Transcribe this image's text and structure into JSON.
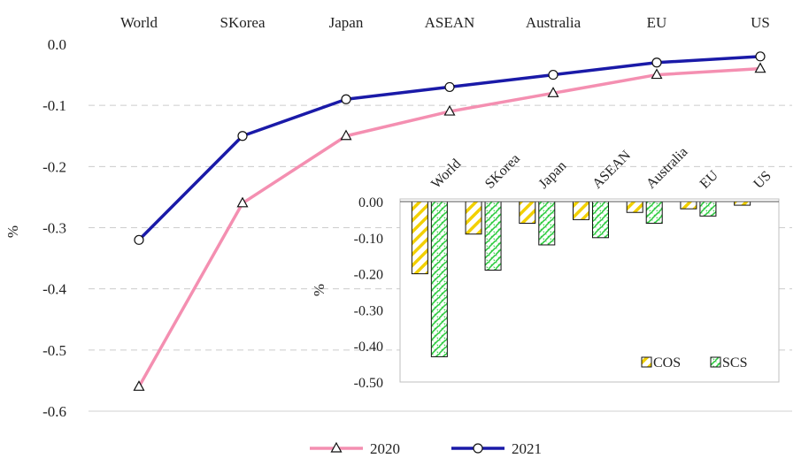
{
  "chart_data": [
    {
      "type": "line",
      "categories": [
        "World",
        "SKorea",
        "Japan",
        "ASEAN",
        "Australia",
        "EU",
        "US"
      ],
      "series": [
        {
          "name": "2020",
          "values": [
            -0.56,
            -0.26,
            -0.15,
            -0.11,
            -0.08,
            -0.05,
            -0.04
          ],
          "color": "#f48fb1",
          "marker": "triangle"
        },
        {
          "name": "2021",
          "values": [
            -0.32,
            -0.15,
            -0.09,
            -0.07,
            -0.05,
            -0.03,
            -0.02
          ],
          "color": "#1a1aa8",
          "marker": "circle"
        }
      ],
      "ylabel": "%",
      "ylim": [
        -0.6,
        0.0
      ],
      "yticks": [
        "0.0",
        "-0.1",
        "-0.2",
        "-0.3",
        "-0.4",
        "-0.5",
        "-0.6"
      ],
      "grid": true,
      "legend": "bottom",
      "xaxis_position": "top"
    },
    {
      "type": "bar",
      "categories": [
        "World",
        "SKorea",
        "Japan",
        "ASEAN",
        "Australia",
        "EU",
        "US"
      ],
      "series": [
        {
          "name": "COS",
          "values": [
            -0.2,
            -0.09,
            -0.06,
            -0.05,
            -0.03,
            -0.02,
            -0.01
          ],
          "color": "#f2d000",
          "pattern": "diagonal-hatch"
        },
        {
          "name": "SCS",
          "values": [
            -0.43,
            -0.19,
            -0.12,
            -0.1,
            -0.06,
            -0.04,
            0.0
          ],
          "color": "#2ecc40",
          "pattern": "crosshatch"
        }
      ],
      "ylabel": "%",
      "ylim": [
        -0.5,
        0.0
      ],
      "yticks": [
        "0.00",
        "-0.10",
        "-0.20",
        "-0.30",
        "-0.40",
        "-0.50"
      ],
      "legend": "bottom-right",
      "xaxis_position": "top",
      "tick_rotation": -45
    }
  ]
}
